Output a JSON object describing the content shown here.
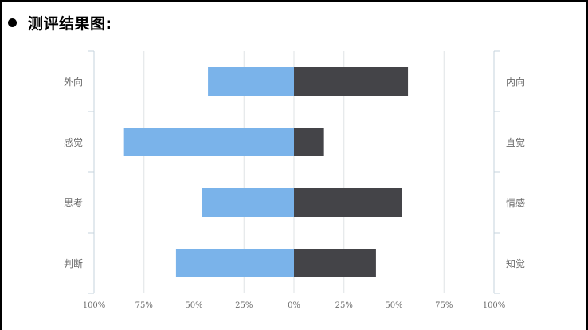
{
  "heading": {
    "bullet_icon": "black-circle-bullet",
    "text": "测评结果图:"
  },
  "chart_data": {
    "type": "bar",
    "orientation": "horizontal-diverging",
    "left_categories": [
      "外向",
      "感觉",
      "思考",
      "判断"
    ],
    "right_categories": [
      "内向",
      "直觉",
      "情感",
      "知觉"
    ],
    "series": [
      {
        "values": [
          43,
          85,
          46,
          59
        ],
        "side": "left"
      },
      {
        "values": [
          57,
          15,
          54,
          41
        ],
        "side": "right"
      }
    ],
    "x_ticks": [
      "100%",
      "75%",
      "50%",
      "25%",
      "0%",
      "25%",
      "50%",
      "75%",
      "100%"
    ],
    "xlim": [
      -100,
      100
    ],
    "unit": "%",
    "grid": true,
    "colors": {
      "left": "#7ab3ea",
      "right": "#444448",
      "grid": "#dfe3e6",
      "axis": "#c4d3dc",
      "label": "#6b6b6b"
    }
  }
}
